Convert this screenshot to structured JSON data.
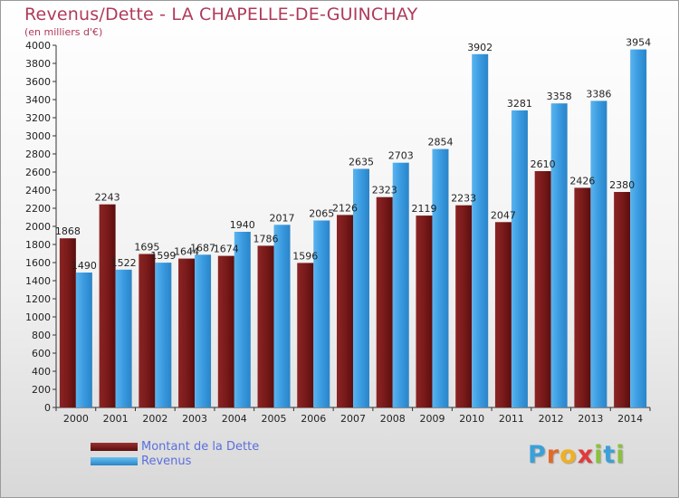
{
  "title": "Revenus/Dette - LA CHAPELLE-DE-GUINCHAY",
  "subtitle": "(en milliers d'€)",
  "logo": {
    "letters": [
      "P",
      "r",
      "o",
      "x",
      "i",
      "t",
      "i"
    ],
    "colors": [
      "#3aa0d8",
      "#e06a2a",
      "#f0b020",
      "#e03a3a",
      "#8cc040",
      "#3aa0d8",
      "#8cc040"
    ]
  },
  "colors": {
    "dette": "#7a1a1a",
    "revenus": "#3a9ae0",
    "title": "#b03a5a",
    "legend_text": "#5a6fdc"
  },
  "chart_data": {
    "type": "bar",
    "categories": [
      "2000",
      "2001",
      "2002",
      "2003",
      "2004",
      "2005",
      "2006",
      "2007",
      "2008",
      "2009",
      "2010",
      "2011",
      "2012",
      "2013",
      "2014"
    ],
    "series": [
      {
        "name": "Montant de la Dette",
        "values": [
          1868,
          2243,
          1695,
          1644,
          1674,
          1786,
          1596,
          2126,
          2323,
          2119,
          2233,
          2047,
          2610,
          2426,
          2380
        ]
      },
      {
        "name": "Revenus",
        "values": [
          1490,
          1522,
          1599,
          1687,
          1940,
          2017,
          2065,
          2635,
          2703,
          2854,
          3902,
          3281,
          3358,
          3386,
          3954
        ]
      }
    ],
    "ylim": [
      0,
      4000
    ],
    "ytick_step": 200,
    "grid": false,
    "legend_position": "bottom-left"
  }
}
